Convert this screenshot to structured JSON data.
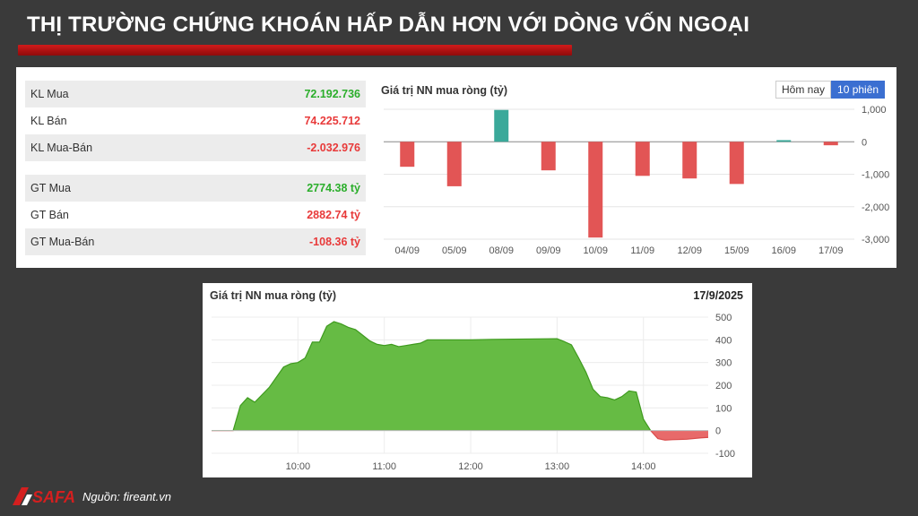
{
  "header": {
    "title": "THỊ TRƯỜNG CHỨNG KHOÁN HẤP DẪN HƠN VỚI DÒNG VỐN NGOẠI"
  },
  "stats": {
    "kl": [
      {
        "label": "KL Mua",
        "value": "72.192.736",
        "tone": "pos"
      },
      {
        "label": "KL Bán",
        "value": "74.225.712",
        "tone": "neg"
      },
      {
        "label": "KL Mua-Bán",
        "value": "-2.032.976",
        "tone": "neg"
      }
    ],
    "gt": [
      {
        "label": "GT Mua",
        "value": "2774.38 tỷ",
        "tone": "pos"
      },
      {
        "label": "GT Bán",
        "value": "2882.74 tỷ",
        "tone": "neg"
      },
      {
        "label": "GT Mua-Bán",
        "value": "-108.36 tỷ",
        "tone": "neg"
      }
    ]
  },
  "toggle": {
    "today": "Hôm nay",
    "ten_sessions": "10 phiên",
    "active": "ten_sessions"
  },
  "colors": {
    "positive_bar": "#3aa99a",
    "negative_bar": "#e25555",
    "area_pos": "#66bb44",
    "area_pos_line": "#3e9a1e",
    "area_neg": "#e86a6a",
    "title_bar": "#c41414"
  },
  "chart_data": [
    {
      "type": "bar",
      "title": "Giá trị NN mua ròng (tỷ)",
      "categories": [
        "04/09",
        "05/09",
        "08/09",
        "09/09",
        "10/09",
        "11/09",
        "12/09",
        "15/09",
        "16/09",
        "17/09"
      ],
      "values": [
        -770,
        -1370,
        980,
        -880,
        -2950,
        -1050,
        -1130,
        -1300,
        50,
        -108
      ],
      "ylim": [
        -3000,
        1000
      ],
      "yticks": [
        1000,
        0,
        -1000,
        -2000,
        -3000
      ],
      "ytick_labels": [
        "1,000",
        "0",
        "-1,000",
        "-2,000",
        "-3,000"
      ],
      "grid": true
    },
    {
      "type": "area",
      "title": "Giá trị NN mua ròng (tỷ)",
      "date": "17/9/2025",
      "x_time": [
        "09:00",
        "09:15",
        "09:20",
        "09:25",
        "09:30",
        "09:40",
        "09:50",
        "09:55",
        "10:00",
        "10:05",
        "10:10",
        "10:15",
        "10:20",
        "10:25",
        "10:30",
        "10:35",
        "10:40",
        "10:45",
        "10:50",
        "10:55",
        "11:00",
        "11:05",
        "11:10",
        "11:15",
        "11:20",
        "11:25",
        "11:30",
        "11:45",
        "12:00",
        "12:15",
        "12:30",
        "12:45",
        "13:00",
        "13:05",
        "13:10",
        "13:15",
        "13:20",
        "13:25",
        "13:30",
        "13:35",
        "13:40",
        "13:45",
        "13:50",
        "13:55",
        "14:00",
        "14:05",
        "14:10",
        "14:15",
        "14:20",
        "14:30",
        "14:40",
        "14:45"
      ],
      "values": [
        0,
        0,
        110,
        145,
        125,
        190,
        280,
        295,
        300,
        320,
        390,
        390,
        460,
        480,
        470,
        455,
        445,
        420,
        395,
        380,
        375,
        380,
        370,
        375,
        380,
        385,
        400,
        400,
        400,
        402,
        403,
        404,
        405,
        392,
        378,
        320,
        258,
        182,
        150,
        145,
        135,
        150,
        175,
        170,
        50,
        0,
        -35,
        -42,
        -40,
        -38,
        -32,
        -30
      ],
      "xticks": [
        "10:00",
        "11:00",
        "12:00",
        "13:00",
        "14:00"
      ],
      "ylim": [
        -100,
        500
      ],
      "yticks": [
        500,
        400,
        300,
        200,
        100,
        0,
        -100
      ]
    }
  ],
  "footer": {
    "logo_text": "SAFA",
    "source": "Nguồn: fireant.vn"
  }
}
